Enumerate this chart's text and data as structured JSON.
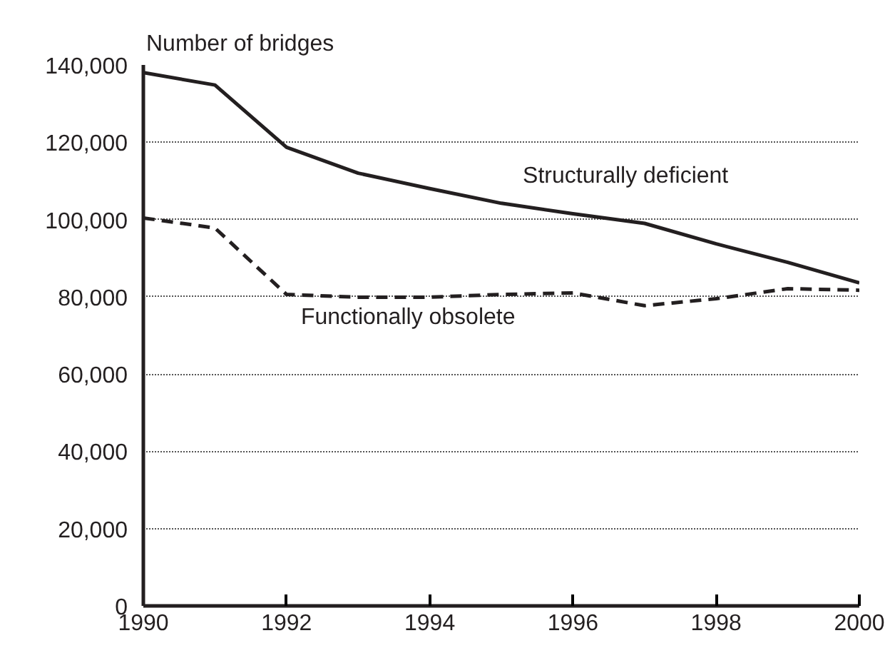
{
  "chart_data": {
    "type": "line",
    "ylabel": "Number of bridges",
    "x": [
      1990,
      1991,
      1992,
      1993,
      1994,
      1995,
      1996,
      1997,
      1998,
      1999,
      2000
    ],
    "series": [
      {
        "name": "Structurally deficient",
        "color": "#231f20",
        "line_style": "solid",
        "values": [
          138000,
          134800,
          118700,
          112000,
          108000,
          104200,
          101500,
          99000,
          93700,
          88900,
          83600
        ]
      },
      {
        "name": "Functionally obsolete",
        "color": "#231f20",
        "line_style": "dashed",
        "values": [
          100400,
          97800,
          80600,
          79900,
          79900,
          80600,
          81000,
          77700,
          79500,
          82100,
          81700
        ]
      }
    ],
    "xlim": [
      1990,
      2000
    ],
    "xticks": [
      1990,
      1992,
      1994,
      1996,
      1998,
      2000
    ],
    "ylim": [
      0,
      140000
    ],
    "yticks": [
      {
        "value": 0,
        "label": "0"
      },
      {
        "value": 20000,
        "label": "20,000"
      },
      {
        "value": 40000,
        "label": "40,000"
      },
      {
        "value": 60000,
        "label": "60,000"
      },
      {
        "value": 80000,
        "label": "80,000"
      },
      {
        "value": 100000,
        "label": "100,000"
      },
      {
        "value": 120000,
        "label": "120,000"
      },
      {
        "value": 140000,
        "label": "140,000"
      }
    ],
    "grid": "y",
    "legend": false,
    "marker": "none"
  }
}
